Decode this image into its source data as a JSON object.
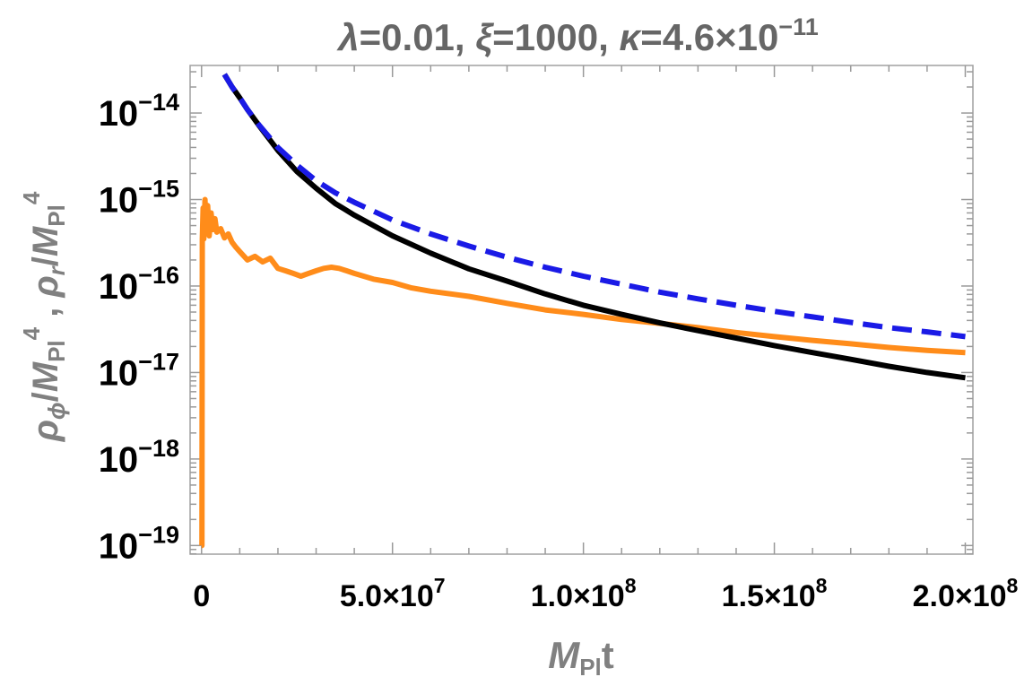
{
  "chart_data": {
    "type": "line",
    "title": {
      "lambda_sym": "λ",
      "lambda_val": "=0.01, ",
      "xi_sym": "ξ",
      "xi_val": "=1000, ",
      "kappa_sym": "κ",
      "kappa_val": "=4.6×10",
      "kappa_exp": "−11"
    },
    "xlabel": {
      "main": "M",
      "sub": "Pl",
      "tail": "t"
    },
    "ylabel": {
      "rho": "ρ",
      "phi_sub": "ϕ",
      "slash": "/",
      "m": "M",
      "pl": "Pl",
      "pow": "4",
      "sep": " , ",
      "r_sub": "r"
    },
    "xlim": [
      -3000000,
      202000000
    ],
    "ylim_log10": [
      -19.1,
      -13.45
    ],
    "y_scale": "log",
    "x_ticks": [
      {
        "value": 0,
        "mant": "0",
        "exp": ""
      },
      {
        "value": 50000000,
        "mant": "5.0×10",
        "exp": "7"
      },
      {
        "value": 100000000,
        "mant": "1.0×10",
        "exp": "8"
      },
      {
        "value": 150000000,
        "mant": "1.5×10",
        "exp": "8"
      },
      {
        "value": 200000000,
        "mant": "2.0×10",
        "exp": "8"
      }
    ],
    "y_ticks": [
      {
        "value": 1e-14,
        "base": "10",
        "exp": "−14"
      },
      {
        "value": 1e-15,
        "base": "10",
        "exp": "−15"
      },
      {
        "value": 1e-16,
        "base": "10",
        "exp": "−16"
      },
      {
        "value": 1e-17,
        "base": "10",
        "exp": "−17"
      },
      {
        "value": 1e-18,
        "base": "10",
        "exp": "−18"
      },
      {
        "value": 1e-19,
        "base": "10",
        "exp": "−19"
      }
    ],
    "grid": false,
    "series": [
      {
        "color": "#000000",
        "dash": "solid",
        "x": [
          6000000,
          8000000,
          10000000,
          12000000,
          15000000,
          20000000,
          25000000,
          30000000,
          35000000,
          40000000,
          50000000,
          60000000,
          70000000,
          80000000,
          90000000,
          100000000,
          110000000,
          120000000,
          130000000,
          140000000,
          150000000,
          160000000,
          170000000,
          180000000,
          190000000,
          200000000
        ],
        "y": [
          2.8e-14,
          2e-14,
          1.5e-14,
          1.1e-14,
          7.2e-15,
          3.7e-15,
          2.1e-15,
          1.35e-15,
          9e-16,
          6.6e-16,
          3.8e-16,
          2.4e-16,
          1.58e-16,
          1.14e-16,
          8.1e-17,
          6e-17,
          4.7e-17,
          3.75e-17,
          3.05e-17,
          2.5e-17,
          2.05e-17,
          1.7e-17,
          1.42e-17,
          1.18e-17,
          1e-17,
          8.7e-18
        ]
      },
      {
        "color": "#1a1ae6",
        "dash": "dashed",
        "x": [
          6000000,
          8000000,
          10000000,
          12000000,
          15000000,
          20000000,
          25000000,
          30000000,
          35000000,
          40000000,
          50000000,
          60000000,
          70000000,
          80000000,
          90000000,
          100000000,
          110000000,
          120000000,
          130000000,
          140000000,
          150000000,
          160000000,
          170000000,
          180000000,
          190000000,
          200000000
        ],
        "y": [
          2.8e-14,
          2e-14,
          1.5e-14,
          1.1e-14,
          7.3e-15,
          4e-15,
          2.5e-15,
          1.65e-15,
          1.2e-15,
          9.3e-16,
          5.8e-16,
          4e-16,
          2.9e-16,
          2.15e-16,
          1.65e-16,
          1.3e-16,
          1.05e-16,
          8.5e-17,
          7.1e-17,
          6e-17,
          5.1e-17,
          4.4e-17,
          3.8e-17,
          3.3e-17,
          2.95e-17,
          2.6e-17
        ]
      },
      {
        "color": "#ff8c1a",
        "dash": "solid",
        "x": [
          0,
          100000,
          200000,
          400000,
          600000,
          900000,
          1200000,
          1600000,
          2000000,
          2500000,
          3000000,
          3500000,
          4000000,
          5000000,
          6000000,
          7000000,
          8000000,
          9000000,
          10000000,
          12000000,
          14000000,
          16000000,
          18000000,
          20000000,
          22000000,
          24000000,
          26000000,
          28000000,
          30000000,
          32000000,
          34000000,
          36000000,
          38000000,
          40000000,
          45000000,
          50000000,
          55000000,
          60000000,
          70000000,
          80000000,
          90000000,
          100000000,
          110000000,
          120000000,
          130000000,
          140000000,
          150000000,
          160000000,
          170000000,
          180000000,
          190000000,
          200000000
        ],
        "y": [
          1e-19,
          1e-19,
          3.5e-16,
          8e-16,
          3.5e-16,
          1e-15,
          4.5e-16,
          8.5e-16,
          3.8e-16,
          7e-16,
          4.5e-16,
          6e-16,
          4.2e-16,
          4.6e-16,
          3.6e-16,
          4e-16,
          3.2e-16,
          2.8e-16,
          2.5e-16,
          2e-16,
          2.2e-16,
          1.9e-16,
          2.1e-16,
          1.6e-16,
          1.5e-16,
          1.4e-16,
          1.3e-16,
          1.4e-16,
          1.5e-16,
          1.6e-16,
          1.65e-16,
          1.6e-16,
          1.5e-16,
          1.4e-16,
          1.2e-16,
          1.1e-16,
          9.5e-17,
          8.7e-17,
          7.6e-17,
          6.3e-17,
          5.3e-17,
          4.7e-17,
          4.1e-17,
          3.7e-17,
          3.3e-17,
          2.9e-17,
          2.6e-17,
          2.35e-17,
          2.15e-17,
          1.95e-17,
          1.8e-17,
          1.7e-17
        ]
      }
    ]
  }
}
